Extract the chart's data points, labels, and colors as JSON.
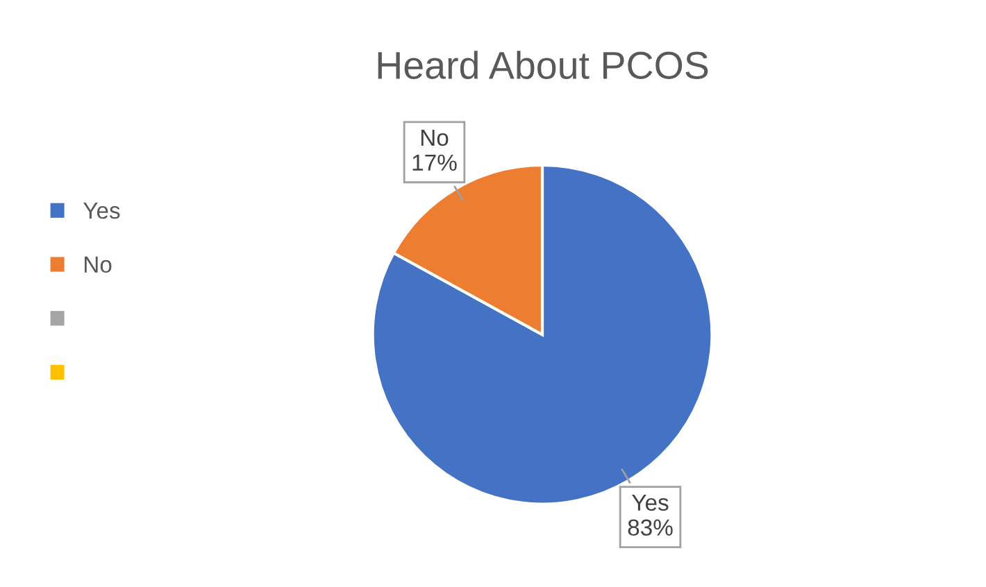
{
  "chart_data": {
    "type": "pie",
    "title": "Heard About PCOS",
    "categories": [
      "Yes",
      "No",
      null,
      null
    ],
    "values": [
      83,
      17,
      0,
      0
    ],
    "colors": [
      "#4472c4",
      "#ed7d31",
      "#a5a5a5",
      "#ffc000"
    ],
    "value_labels": [
      "Yes\n83%",
      "No\n17%",
      null,
      null
    ],
    "legend": "left"
  }
}
